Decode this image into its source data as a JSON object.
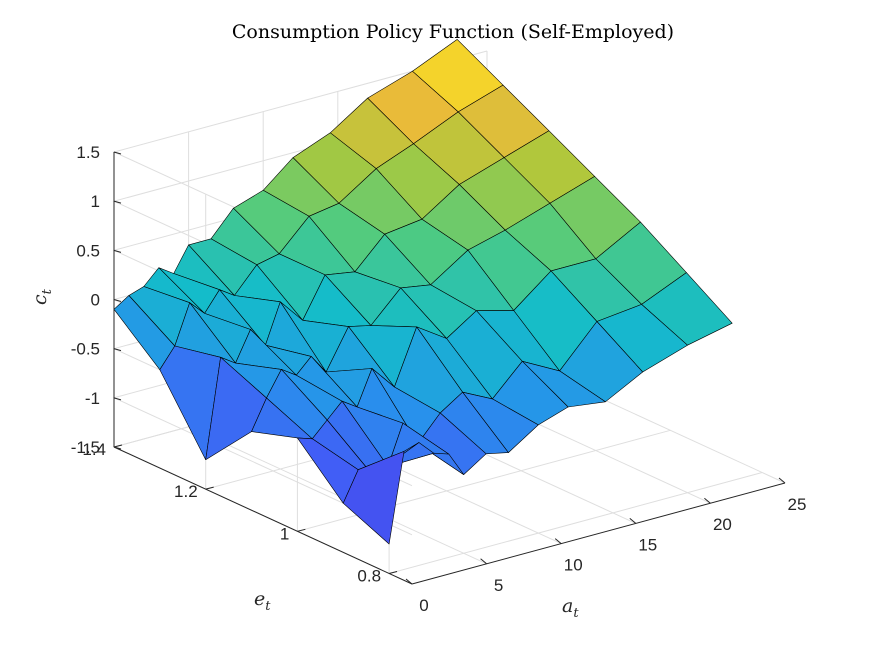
{
  "chart_data": {
    "type": "surface",
    "title": "Consumption Policy Function (Self-Employed)",
    "xlabel": {
      "base": "a",
      "sub": "t"
    },
    "ylabel": {
      "base": "e",
      "sub": "t"
    },
    "zlabel": {
      "base": "c",
      "sub": "t"
    },
    "xlim": [
      0,
      25
    ],
    "ylim": [
      0.75,
      1.4
    ],
    "zlim": [
      -1.5,
      1.5
    ],
    "x_ticks": [
      "0",
      "5",
      "10",
      "15",
      "20",
      "25"
    ],
    "x_tick_values": [
      0,
      5,
      10,
      15,
      20,
      25
    ],
    "y_ticks": [
      "0.8",
      "1",
      "1.2",
      "1.4"
    ],
    "y_tick_values": [
      0.8,
      1.0,
      1.2,
      1.4
    ],
    "z_ticks": [
      "-1.5",
      "-1",
      "-0.5",
      "0",
      "0.5",
      "1",
      "1.5"
    ],
    "z_tick_values": [
      -1.5,
      -1,
      -0.5,
      0,
      0.5,
      1,
      1.5
    ],
    "grid": true,
    "colormap": "parula",
    "a_grid": [
      0,
      1,
      2,
      3,
      4,
      5,
      6.5,
      8,
      10,
      12,
      14.5,
      17,
      20,
      23
    ],
    "e_grid": [
      0.8,
      0.9,
      1.0,
      1.1,
      1.2,
      1.3,
      1.4
    ],
    "c_values": [
      [
        -1.2,
        -0.3,
        -0.25,
        -0.4,
        -0.45,
        -0.7,
        -0.55,
        -0.6,
        -0.4,
        -0.3,
        -0.35,
        -0.15,
        0.0,
        0.1
      ],
      [
        -1.0,
        -0.7,
        -0.8,
        -0.75,
        -0.35,
        -0.6,
        -0.35,
        -0.2,
        -0.35,
        -0.05,
        -0.25,
        0.15,
        0.2,
        0.4
      ],
      [
        -0.55,
        -0.6,
        -0.45,
        -0.3,
        -0.4,
        -0.05,
        -0.3,
        0.25,
        0.05,
        0.25,
        0.15,
        0.45,
        0.45,
        0.7
      ],
      [
        -0.7,
        -0.4,
        -0.15,
        -0.25,
        -0.1,
        -0.3,
        0.1,
        0.05,
        0.35,
        0.3,
        0.55,
        0.65,
        0.8,
        0.95
      ],
      [
        -1.2,
        -0.2,
        -0.3,
        0.0,
        -0.2,
        0.2,
        -0.05,
        0.35,
        0.3,
        0.6,
        0.65,
        0.9,
        1.05,
        1.2
      ],
      [
        -0.5,
        -0.3,
        0.1,
        -0.05,
        0.15,
        0.05,
        0.3,
        0.35,
        0.65,
        0.7,
        0.95,
        1.1,
        1.3,
        1.45
      ],
      [
        -0.1,
        0.0,
        0.05,
        0.2,
        0.1,
        0.35,
        0.35,
        0.6,
        0.7,
        0.95,
        1.1,
        1.35,
        1.5,
        1.7
      ]
    ]
  }
}
